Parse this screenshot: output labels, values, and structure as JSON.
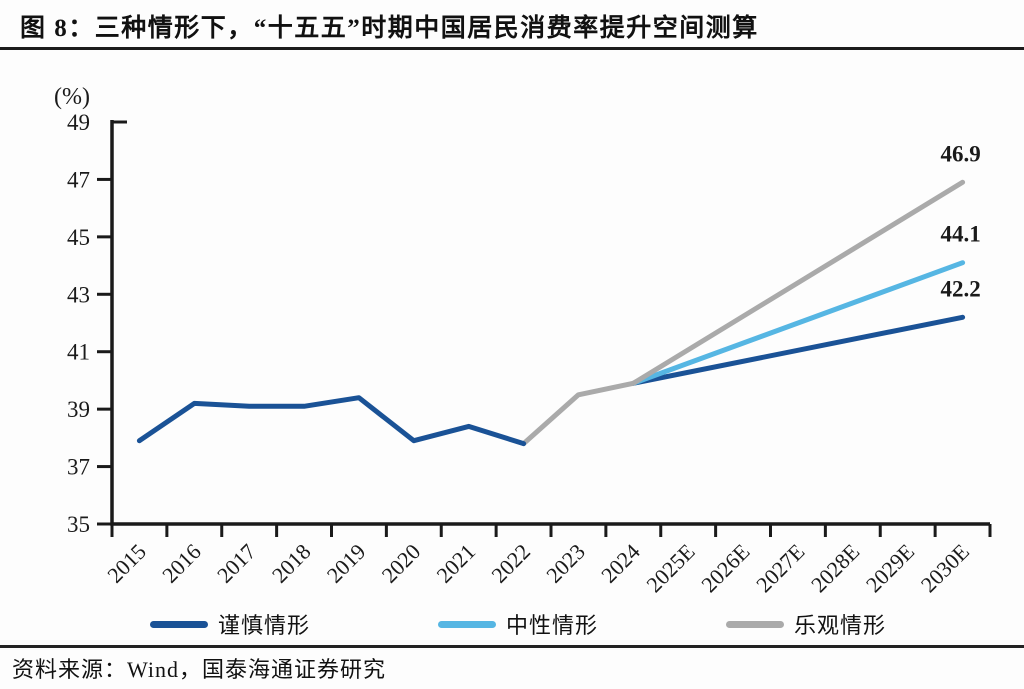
{
  "title": "图 8：三种情形下，“十五五”时期中国居民消费率提升空间测算",
  "footer": {
    "source": "资料来源：Wind，国泰海通证券研究"
  },
  "chart_data": {
    "type": "line",
    "title": "三种情形下，“十五五”时期中国居民消费率提升空间测算",
    "unit_label": "(%)",
    "ylim": [
      35,
      49
    ],
    "yticks": [
      35,
      37,
      39,
      41,
      43,
      45,
      47,
      49
    ],
    "x_categories": [
      "2015",
      "2016",
      "2017",
      "2018",
      "2019",
      "2020",
      "2021",
      "2022",
      "2023",
      "2024",
      "2025E",
      "2026E",
      "2027E",
      "2028E",
      "2029E",
      "2030E"
    ],
    "grid": "off",
    "legend_position": "bottom",
    "history": {
      "x": [
        "2015",
        "2016",
        "2017",
        "2018",
        "2019",
        "2020",
        "2021",
        "2022",
        "2023",
        "2024"
      ],
      "values": [
        37.9,
        39.2,
        39.1,
        39.1,
        39.4,
        37.9,
        38.4,
        37.8,
        39.5,
        39.9
      ],
      "actual_until": "2022",
      "actual_color": "#1a5296",
      "estimate_color": "#aaaaaa"
    },
    "series": [
      {
        "name": "谨慎情形",
        "color": "#1a5296",
        "from": {
          "x": "2024",
          "value": 39.9
        },
        "to": {
          "x": "2030E",
          "value": 42.2
        },
        "end_label": "42.2"
      },
      {
        "name": "中性情形",
        "color": "#56b6e3",
        "from": {
          "x": "2024",
          "value": 39.9
        },
        "to": {
          "x": "2030E",
          "value": 44.1
        },
        "end_label": "44.1"
      },
      {
        "name": "乐观情形",
        "color": "#aaaaaa",
        "from": {
          "x": "2024",
          "value": 39.9
        },
        "to": {
          "x": "2030E",
          "value": 46.9
        },
        "end_label": "46.9"
      }
    ],
    "legend": [
      {
        "label": "谨慎情形",
        "color": "#1a5296"
      },
      {
        "label": "中性情形",
        "color": "#56b6e3"
      },
      {
        "label": "乐观情形",
        "color": "#aaaaaa"
      }
    ]
  }
}
